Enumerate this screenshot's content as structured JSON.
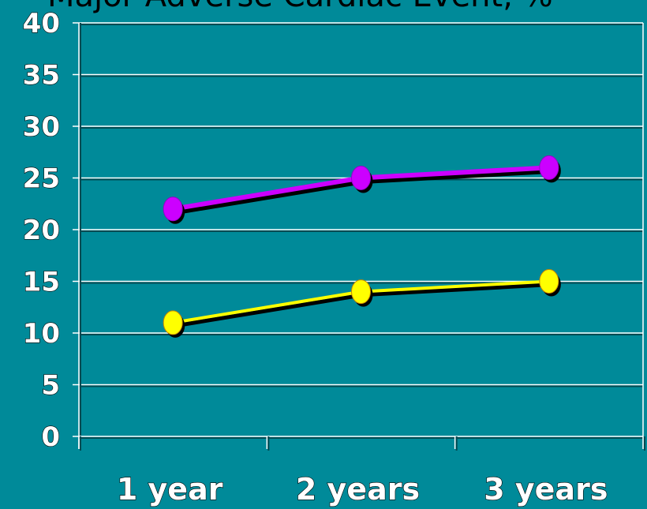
{
  "chart_data": {
    "type": "line",
    "title": "Major Adverse Cardiac Event, %",
    "xlabel": "",
    "ylabel": "",
    "categories": [
      "1 year",
      "2 years",
      "3 years"
    ],
    "ylim": [
      0,
      40
    ],
    "yticks": [
      0,
      5,
      10,
      15,
      20,
      25,
      30,
      35,
      40
    ],
    "grid": true,
    "legend": "none",
    "series": [
      {
        "values": [
          22,
          25,
          26
        ],
        "color": "#cc00ff"
      },
      {
        "values": [
          11,
          14,
          15
        ],
        "color": "#ffff00"
      }
    ]
  },
  "colors": {
    "background": "#008a99",
    "gridline": "#ffffff",
    "text": "#ffffff",
    "text_outline": "#000000"
  }
}
